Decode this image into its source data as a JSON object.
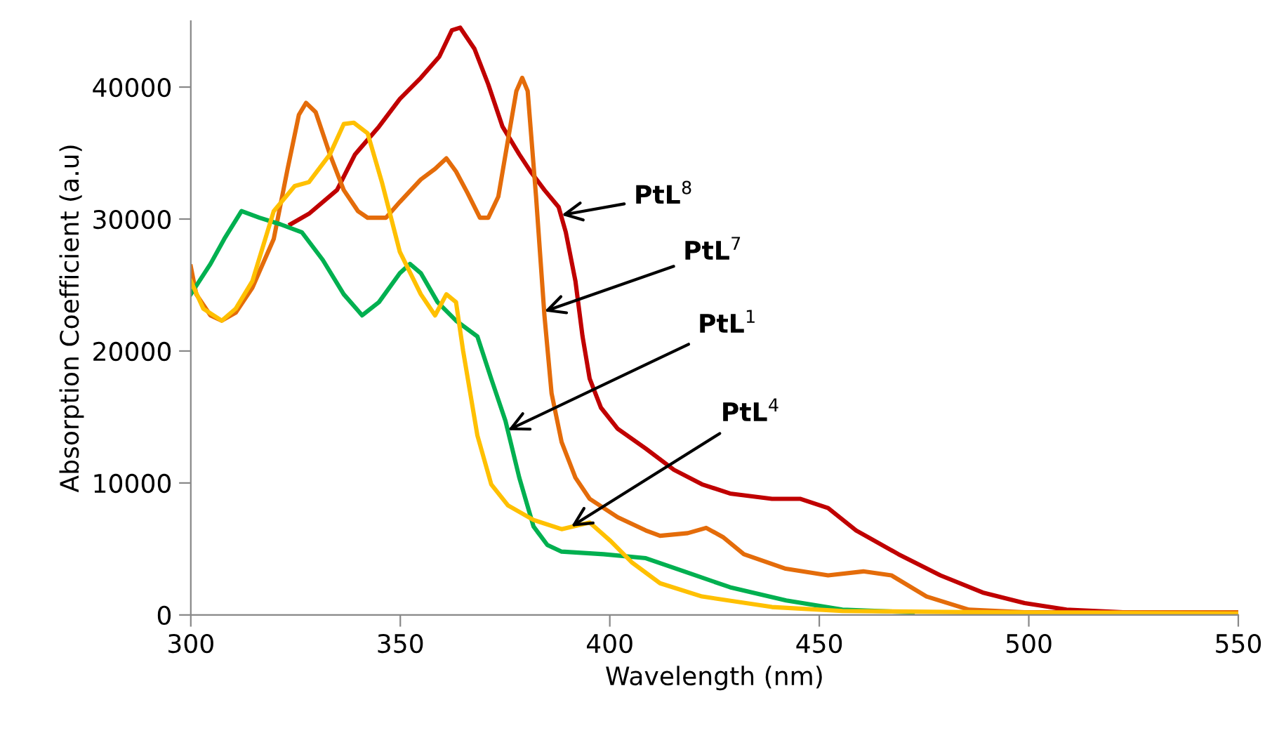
{
  "chart_data": {
    "type": "line",
    "xlabel": "Wavelength (nm)",
    "ylabel": "Absorption Coefficient (a.u)",
    "xlim": [
      300,
      550
    ],
    "xticks": [
      300,
      350,
      400,
      450,
      500,
      550
    ],
    "ylim": [
      0,
      45000
    ],
    "yticks": [
      0,
      10000,
      20000,
      30000,
      40000
    ],
    "grid": false,
    "legend": false,
    "marker": "none",
    "line_style": "solid",
    "series": [
      {
        "color": "#c00000",
        "x": [
          323.8,
          328.2,
          334.9,
          339.2,
          344.9,
          349.9,
          354.9,
          359.3,
          362.3,
          364.3,
          367.7,
          371,
          374.4,
          378.4,
          381.1,
          384.4,
          387.8,
          389.5,
          391.8,
          393.5,
          395.2,
          397.9,
          401.9,
          408.6,
          415.3,
          422,
          428.7,
          438.7,
          445.4,
          452.1,
          458.8,
          468.9,
          478.9,
          489,
          499,
          509,
          522.5,
          550
        ],
        "values": [
          29600,
          30400,
          32200,
          34900,
          37000,
          39100,
          40700,
          42300,
          44300,
          44500,
          42900,
          40200,
          37000,
          34900,
          33600,
          32200,
          30900,
          29000,
          25300,
          21100,
          17900,
          15700,
          14100,
          12600,
          11000,
          9900,
          9200,
          8800,
          8800,
          8100,
          6400,
          4600,
          3000,
          1700,
          900,
          400,
          200,
          100
        ]
      },
      {
        "color": "#e46c0a",
        "x": [
          300,
          301.3,
          304.7,
          307.4,
          310.7,
          314.7,
          319.8,
          323.1,
          325.8,
          327.5,
          329.8,
          333.2,
          336.5,
          339.9,
          342.2,
          346.6,
          349.9,
          354.9,
          358.3,
          361,
          363.3,
          366,
          369,
          371,
          373.4,
          375.7,
          377.7,
          379.1,
          380.4,
          382.4,
          384.4,
          386.1,
          388.5,
          391.8,
          395.2,
          401.9,
          408.6,
          412,
          418.6,
          423,
          427,
          432,
          442,
          452.1,
          460.5,
          467.2,
          475.6,
          485.7,
          499,
          550
        ],
        "values": [
          26400,
          24300,
          22700,
          22300,
          22900,
          24800,
          28500,
          33800,
          37900,
          38800,
          38100,
          34900,
          32200,
          30600,
          30100,
          30100,
          31300,
          33000,
          33800,
          34600,
          33600,
          32000,
          30100,
          30100,
          31700,
          36000,
          39700,
          40700,
          39700,
          31700,
          22700,
          16800,
          13100,
          10400,
          8800,
          7400,
          6400,
          6000,
          6200,
          6600,
          5900,
          4600,
          3500,
          3000,
          3300,
          3000,
          1400,
          400,
          200,
          200
        ]
      },
      {
        "color": "#00b050",
        "x": [
          300,
          304.7,
          308,
          312.1,
          316.4,
          321.4,
          326.5,
          331.5,
          336.5,
          340.9,
          344.9,
          349.9,
          352.3,
          354.9,
          358.9,
          363.3,
          368.4,
          371.7,
          375.1,
          378.4,
          381.8,
          385.1,
          388.5,
          398.5,
          408.6,
          418.6,
          428.7,
          442.1,
          455.5,
          472.3
        ],
        "values": [
          24300,
          26600,
          28500,
          30600,
          30100,
          29600,
          29000,
          26900,
          24300,
          22700,
          23700,
          25900,
          26600,
          25900,
          23700,
          22300,
          21100,
          17900,
          14700,
          10400,
          6700,
          5300,
          4800,
          4600,
          4300,
          3200,
          2100,
          1100,
          400,
          200
        ]
      },
      {
        "color": "#ffc000",
        "x": [
          300,
          303,
          307.4,
          310.7,
          314.7,
          319.8,
          324.8,
          328.2,
          333.2,
          336.5,
          338.9,
          342.2,
          345.6,
          349.9,
          354.9,
          358.3,
          361,
          363.3,
          365,
          368.4,
          371.7,
          375.7,
          381.8,
          388.5,
          395.2,
          400.2,
          405.2,
          412,
          422,
          438.7,
          455.5,
          489,
          550
        ],
        "values": [
          25300,
          23200,
          22300,
          23200,
          25300,
          30600,
          32500,
          32800,
          34900,
          37200,
          37300,
          36500,
          32800,
          27500,
          24300,
          22700,
          24300,
          23700,
          20000,
          13600,
          9900,
          8300,
          7200,
          6500,
          7000,
          5600,
          4000,
          2400,
          1400,
          600,
          300,
          200,
          100
        ]
      }
    ],
    "annotations": [
      {
        "text": "PtL$^{8}$",
        "x": 388.5,
        "y": 30300
      },
      {
        "text": "PtL$^{7}$",
        "x": 384.4,
        "y": 23000
      },
      {
        "text": "PtL$^{1}$",
        "x": 375.7,
        "y": 14000
      },
      {
        "text": "PtL$^{4}$",
        "x": 390.8,
        "y": 6700
      }
    ]
  }
}
